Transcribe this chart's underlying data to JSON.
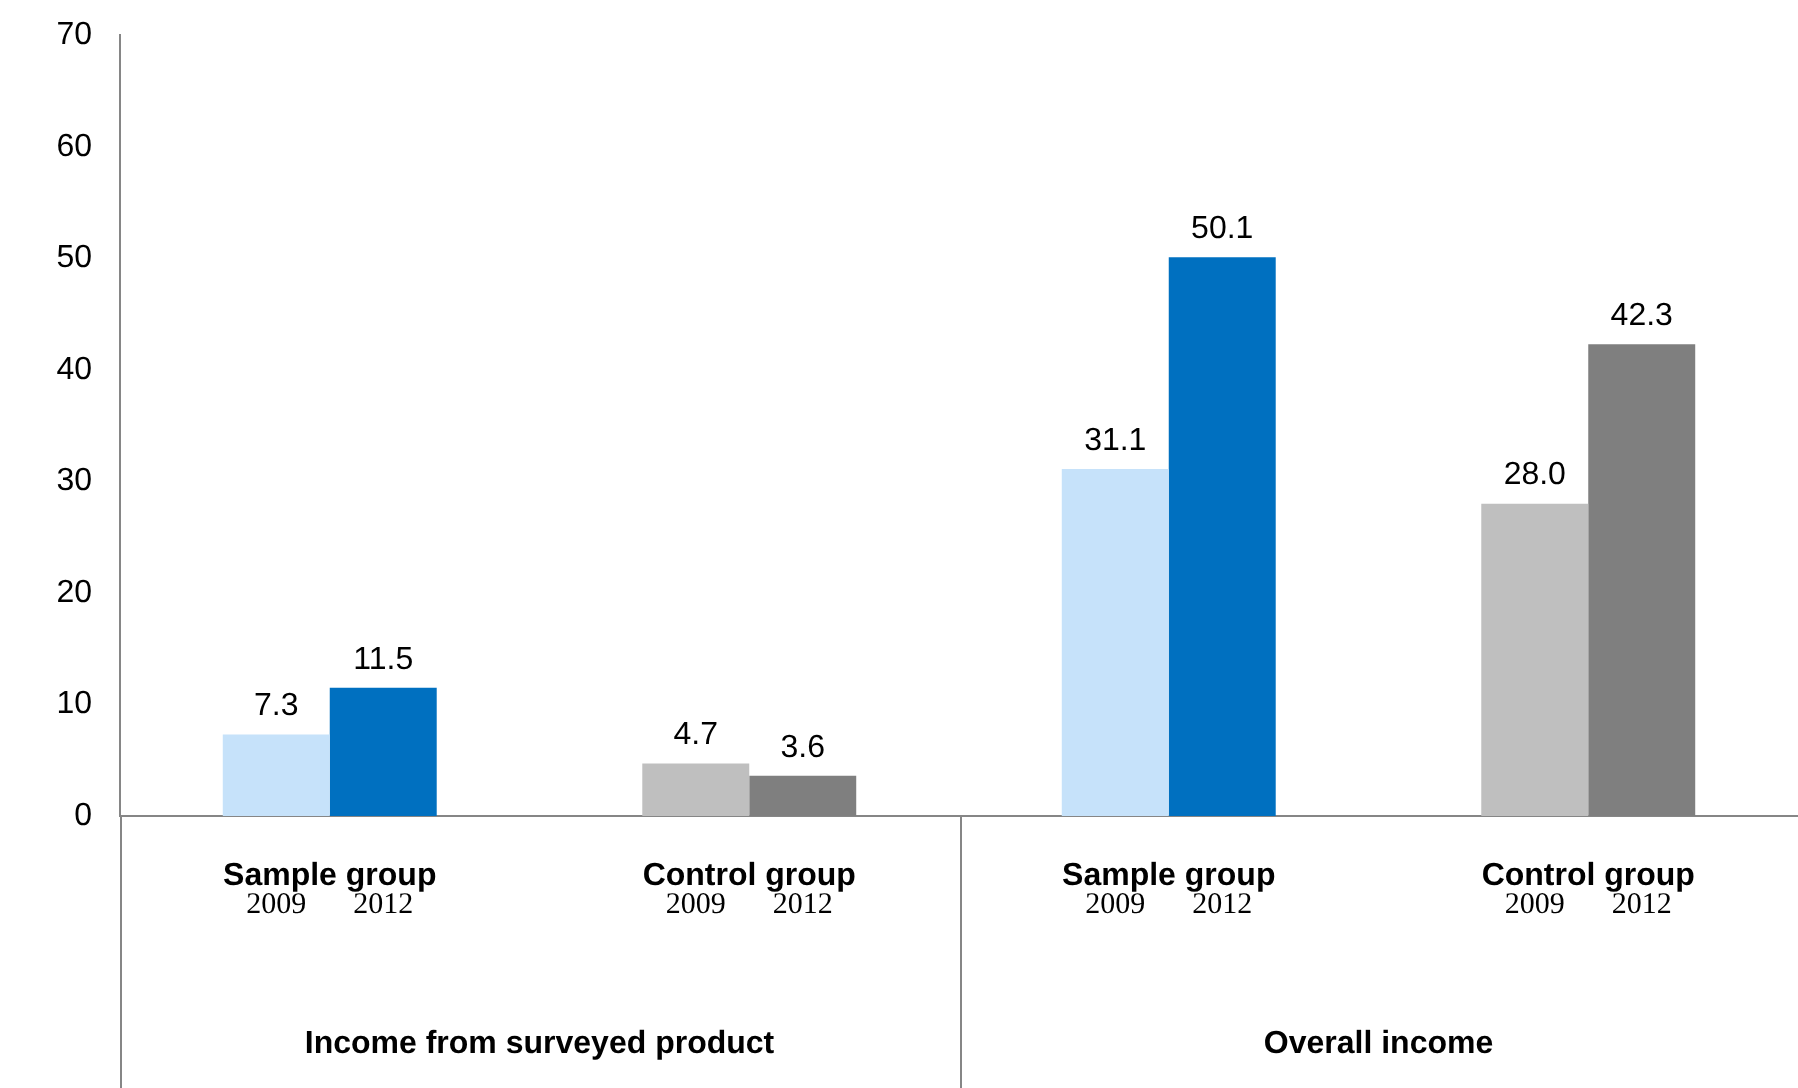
{
  "chart_data": {
    "type": "bar",
    "categories": [
      "Sample group",
      "Control group",
      "Sample group",
      "Control group"
    ],
    "series": [
      {
        "name": "2009",
        "values": [
          7.3,
          4.7,
          31.1,
          28.0
        ],
        "value_labels": [
          "7.3",
          "4.7",
          "31.1",
          "28.0"
        ],
        "colors": [
          "#c6e2fa",
          "#bfbfbf",
          "#c6e2fa",
          "#bfbfbf"
        ]
      },
      {
        "name": "2012",
        "values": [
          11.5,
          3.6,
          50.1,
          42.3
        ],
        "value_labels": [
          "11.5",
          "3.6",
          "50.1",
          "42.3"
        ],
        "colors": [
          "#0070c0",
          "#7f7f7f",
          "#0070c0",
          "#7f7f7f"
        ]
      }
    ],
    "ylim": [
      0,
      70
    ],
    "yticks": [
      0,
      10,
      20,
      30,
      40,
      50,
      60,
      70
    ],
    "grid": false,
    "legend": false,
    "annotations": [
      "Income from surveyed product",
      "Overall income"
    ]
  }
}
